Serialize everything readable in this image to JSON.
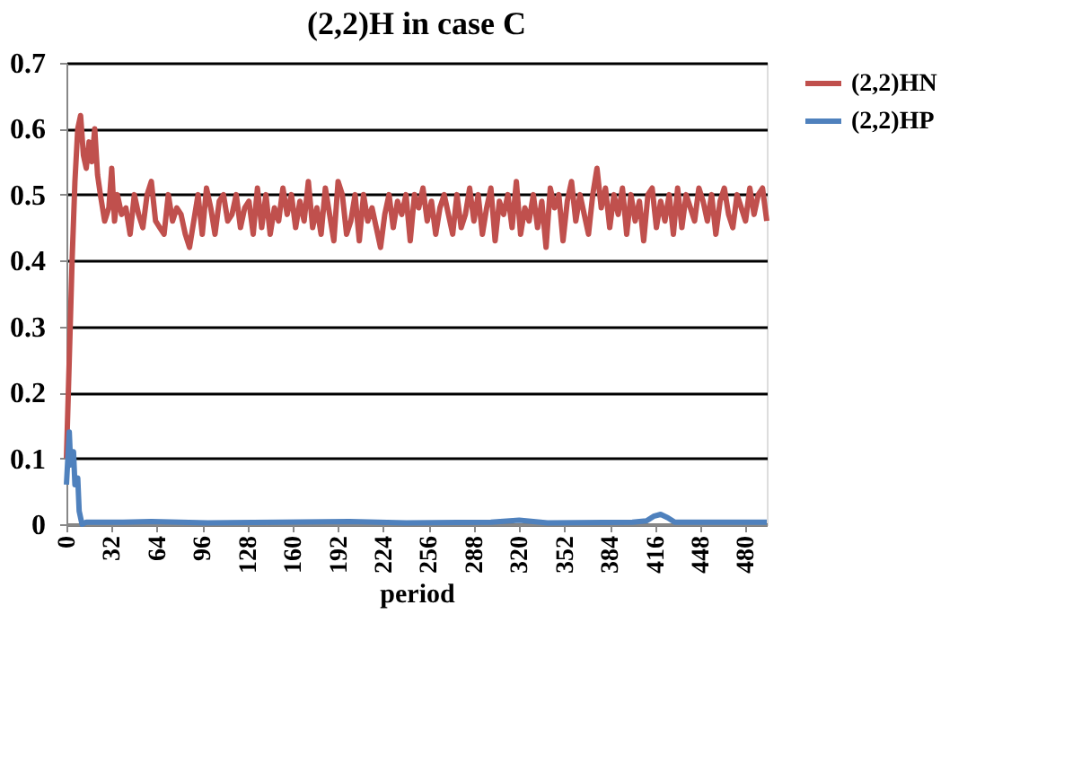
{
  "chart_data": {
    "type": "line",
    "title": "(2,2)H in case C",
    "xlabel": "period",
    "xlim": [
      0,
      495
    ],
    "xticks": [
      0,
      32,
      64,
      96,
      128,
      160,
      192,
      224,
      256,
      288,
      320,
      352,
      384,
      416,
      448,
      480
    ],
    "ylim": [
      0,
      0.7
    ],
    "yticks": [
      0,
      0.1,
      0.2,
      0.3,
      0.4,
      0.5,
      0.6,
      0.7
    ],
    "grid": "y",
    "legend": "right",
    "marker": "none",
    "line_style": "solid",
    "series": [
      {
        "name": "(2,2)HN",
        "color": "#c0504d",
        "x": [
          0,
          2,
          4,
          6,
          8,
          10,
          12,
          14,
          16,
          18,
          20,
          22,
          24,
          27,
          30,
          32,
          34,
          36,
          39,
          42,
          45,
          48,
          51,
          54,
          57,
          60,
          63,
          66,
          69,
          72,
          75,
          78,
          81,
          84,
          87,
          90,
          93,
          96,
          99,
          102,
          105,
          108,
          111,
          114,
          117,
          120,
          123,
          126,
          129,
          132,
          135,
          138,
          141,
          144,
          147,
          150,
          153,
          156,
          159,
          162,
          165,
          168,
          171,
          174,
          177,
          180,
          183,
          186,
          189,
          192,
          195,
          198,
          201,
          204,
          207,
          210,
          213,
          216,
          219,
          222,
          225,
          228,
          231,
          234,
          237,
          240,
          243,
          246,
          249,
          252,
          255,
          258,
          261,
          264,
          267,
          270,
          273,
          276,
          279,
          282,
          285,
          288,
          291,
          294,
          297,
          300,
          303,
          306,
          309,
          312,
          315,
          318,
          321,
          324,
          327,
          330,
          333,
          336,
          339,
          342,
          345,
          348,
          351,
          354,
          357,
          360,
          363,
          366,
          369,
          372,
          375,
          378,
          381,
          384,
          387,
          390,
          393,
          396,
          399,
          402,
          405,
          408,
          411,
          414,
          417,
          420,
          423,
          426,
          429,
          432,
          435,
          438,
          441,
          444,
          447,
          450,
          453,
          456,
          459,
          462,
          465,
          468,
          471,
          474,
          477,
          480,
          483,
          486,
          489,
          492,
          495
        ],
        "values": [
          0.1,
          0.25,
          0.4,
          0.52,
          0.6,
          0.62,
          0.56,
          0.54,
          0.58,
          0.55,
          0.6,
          0.53,
          0.5,
          0.46,
          0.48,
          0.54,
          0.46,
          0.5,
          0.47,
          0.48,
          0.44,
          0.5,
          0.47,
          0.45,
          0.5,
          0.52,
          0.46,
          0.45,
          0.44,
          0.5,
          0.46,
          0.48,
          0.47,
          0.44,
          0.42,
          0.46,
          0.5,
          0.44,
          0.51,
          0.48,
          0.44,
          0.49,
          0.5,
          0.46,
          0.47,
          0.5,
          0.45,
          0.48,
          0.49,
          0.44,
          0.51,
          0.45,
          0.5,
          0.44,
          0.48,
          0.46,
          0.51,
          0.47,
          0.5,
          0.45,
          0.49,
          0.46,
          0.52,
          0.45,
          0.48,
          0.44,
          0.51,
          0.47,
          0.43,
          0.52,
          0.5,
          0.44,
          0.46,
          0.5,
          0.43,
          0.5,
          0.46,
          0.48,
          0.45,
          0.42,
          0.47,
          0.5,
          0.45,
          0.49,
          0.47,
          0.5,
          0.43,
          0.5,
          0.48,
          0.51,
          0.46,
          0.49,
          0.44,
          0.48,
          0.5,
          0.47,
          0.44,
          0.5,
          0.45,
          0.47,
          0.51,
          0.46,
          0.5,
          0.44,
          0.48,
          0.51,
          0.43,
          0.49,
          0.47,
          0.5,
          0.45,
          0.52,
          0.44,
          0.48,
          0.46,
          0.5,
          0.45,
          0.49,
          0.42,
          0.51,
          0.48,
          0.5,
          0.43,
          0.49,
          0.52,
          0.46,
          0.5,
          0.47,
          0.44,
          0.5,
          0.54,
          0.48,
          0.51,
          0.45,
          0.5,
          0.47,
          0.51,
          0.44,
          0.5,
          0.46,
          0.49,
          0.43,
          0.5,
          0.51,
          0.45,
          0.49,
          0.46,
          0.5,
          0.44,
          0.51,
          0.45,
          0.5,
          0.48,
          0.46,
          0.51,
          0.49,
          0.46,
          0.5,
          0.44,
          0.49,
          0.51,
          0.47,
          0.45,
          0.5,
          0.48,
          0.46,
          0.51,
          0.47,
          0.5,
          0.51,
          0.46
        ]
      },
      {
        "name": "(2,2)HP",
        "color": "#4f81bd",
        "x": [
          0,
          2,
          3,
          5,
          6,
          8,
          9,
          11,
          14,
          40,
          60,
          100,
          150,
          200,
          240,
          300,
          320,
          340,
          400,
          410,
          415,
          420,
          425,
          430,
          460,
          495
        ],
        "values": [
          0.06,
          0.14,
          0.09,
          0.11,
          0.06,
          0.07,
          0.02,
          0.0,
          0.003,
          0.003,
          0.004,
          0.002,
          0.003,
          0.004,
          0.002,
          0.003,
          0.006,
          0.002,
          0.003,
          0.005,
          0.012,
          0.015,
          0.01,
          0.003,
          0.003,
          0.003
        ]
      }
    ]
  }
}
